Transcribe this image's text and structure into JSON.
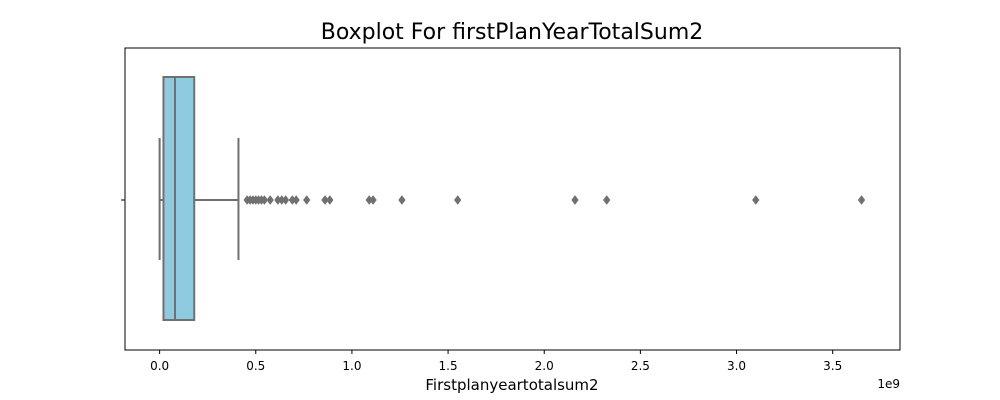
{
  "chart_data": {
    "type": "boxplot",
    "title": "Boxplot For firstPlanYearTotalSum2",
    "xlabel": "Firstplanyeartotalsum2",
    "ylabel": "",
    "x_offset_label": "1e9",
    "xlim": [
      -0.18,
      3.85
    ],
    "xticks": [
      0.0,
      0.5,
      1.0,
      1.5,
      2.0,
      2.5,
      3.0,
      3.5
    ],
    "xtick_labels": [
      "0.0",
      "0.5",
      "1.0",
      "1.5",
      "2.0",
      "2.5",
      "3.0",
      "3.5"
    ],
    "grid": false,
    "box_color": "#8fcbe0",
    "line_color": "#707070",
    "box": {
      "whisker_low": 0.0,
      "q1": 0.02,
      "median": 0.08,
      "q3": 0.18,
      "whisker_high": 0.41
    },
    "outliers": [
      0.455,
      0.47,
      0.485,
      0.5,
      0.515,
      0.53,
      0.545,
      0.575,
      0.615,
      0.635,
      0.655,
      0.69,
      0.71,
      0.765,
      0.86,
      0.885,
      1.09,
      1.11,
      1.26,
      1.55,
      2.16,
      2.325,
      3.1,
      3.65
    ]
  }
}
